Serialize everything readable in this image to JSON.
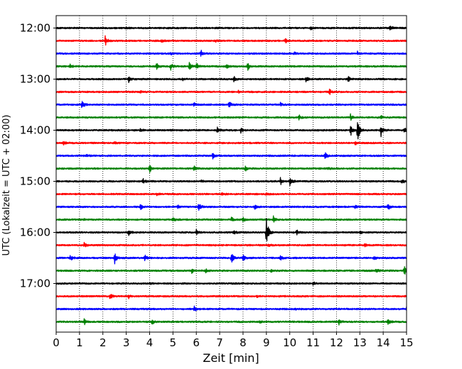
{
  "chart_data": {
    "type": "line",
    "title": "",
    "xlabel": "Zeit  [min]",
    "ylabel": "UTC (Lokalzeit = UTC + 02:00)",
    "xlim": [
      0,
      15
    ],
    "xticks": [
      0,
      1,
      2,
      3,
      4,
      5,
      6,
      7,
      8,
      9,
      10,
      11,
      12,
      13,
      14,
      15
    ],
    "ytick_labels": [
      "12:00",
      "13:00",
      "14:00",
      "15:00",
      "16:00",
      "17:00"
    ],
    "trace_interval_minutes": 15,
    "start_time": "12:00",
    "grid": "vertical dotted",
    "colors": [
      "#000000",
      "#ff0000",
      "#0000ff",
      "#008000"
    ],
    "traces": [
      {
        "start": "12:00",
        "color": "#000000",
        "events": [
          {
            "t": 14.3,
            "amp": 0.55
          },
          {
            "t": 10.9,
            "amp": 0.2
          },
          {
            "t": 3.0,
            "amp": 0.15
          }
        ]
      },
      {
        "start": "12:15",
        "color": "#ff0000",
        "events": [
          {
            "t": 2.1,
            "amp": 0.8
          },
          {
            "t": 4.5,
            "amp": 0.25
          },
          {
            "t": 9.8,
            "amp": 0.4
          },
          {
            "t": 6.8,
            "amp": 0.2
          }
        ]
      },
      {
        "start": "12:30",
        "color": "#0000ff",
        "events": [
          {
            "t": 6.2,
            "amp": 0.5
          },
          {
            "t": 4.9,
            "amp": 0.25
          },
          {
            "t": 12.9,
            "amp": 0.3
          },
          {
            "t": 10.2,
            "amp": 0.25
          }
        ]
      },
      {
        "start": "12:45",
        "color": "#008000",
        "events": [
          {
            "t": 0.6,
            "amp": 0.35
          },
          {
            "t": 4.3,
            "amp": 0.5
          },
          {
            "t": 4.9,
            "amp": 0.55
          },
          {
            "t": 5.7,
            "amp": 0.6
          },
          {
            "t": 6.0,
            "amp": 0.55
          },
          {
            "t": 8.2,
            "amp": 0.65
          },
          {
            "t": 7.3,
            "amp": 0.25
          }
        ]
      },
      {
        "start": "13:00",
        "color": "#000000",
        "events": [
          {
            "t": 3.1,
            "amp": 0.55
          },
          {
            "t": 7.6,
            "amp": 0.5
          },
          {
            "t": 10.7,
            "amp": 0.5
          },
          {
            "t": 12.5,
            "amp": 0.45
          },
          {
            "t": 5.4,
            "amp": 0.2
          }
        ]
      },
      {
        "start": "13:15",
        "color": "#ff0000",
        "events": [
          {
            "t": 11.7,
            "amp": 0.45
          },
          {
            "t": 7.8,
            "amp": 0.2
          },
          {
            "t": 3.6,
            "amp": 0.15
          }
        ]
      },
      {
        "start": "13:30",
        "color": "#0000ff",
        "events": [
          {
            "t": 1.1,
            "amp": 0.9
          },
          {
            "t": 7.4,
            "amp": 0.55
          },
          {
            "t": 5.9,
            "amp": 0.3
          },
          {
            "t": 9.6,
            "amp": 0.25
          }
        ]
      },
      {
        "start": "13:45",
        "color": "#008000",
        "events": [
          {
            "t": 10.4,
            "amp": 0.4
          },
          {
            "t": 12.6,
            "amp": 0.45
          },
          {
            "t": 13.9,
            "amp": 0.35
          }
        ]
      },
      {
        "start": "14:00",
        "color": "#000000",
        "events": [
          {
            "t": 12.9,
            "amp": 1.9
          },
          {
            "t": 12.6,
            "amp": 0.9
          },
          {
            "t": 13.9,
            "amp": 1.0
          },
          {
            "t": 14.9,
            "amp": 0.5
          },
          {
            "t": 6.9,
            "amp": 0.55
          },
          {
            "t": 7.9,
            "amp": 0.4
          },
          {
            "t": 3.6,
            "amp": 0.2
          }
        ]
      },
      {
        "start": "14:15",
        "color": "#ff0000",
        "events": [
          {
            "t": 0.3,
            "amp": 0.3
          },
          {
            "t": 12.8,
            "amp": 0.3
          },
          {
            "t": 2.5,
            "amp": 0.15
          }
        ]
      },
      {
        "start": "14:30",
        "color": "#0000ff",
        "events": [
          {
            "t": 6.7,
            "amp": 0.55
          },
          {
            "t": 11.5,
            "amp": 0.6
          },
          {
            "t": 1.3,
            "amp": 0.15
          }
        ]
      },
      {
        "start": "14:45",
        "color": "#008000",
        "events": [
          {
            "t": 4.0,
            "amp": 0.55
          },
          {
            "t": 5.9,
            "amp": 0.35
          },
          {
            "t": 8.1,
            "amp": 0.45
          },
          {
            "t": 11.6,
            "amp": 0.2
          }
        ]
      },
      {
        "start": "15:00",
        "color": "#000000",
        "events": [
          {
            "t": 3.7,
            "amp": 0.5
          },
          {
            "t": 9.6,
            "amp": 0.55
          },
          {
            "t": 10.0,
            "amp": 0.8
          },
          {
            "t": 14.8,
            "amp": 0.5
          },
          {
            "t": 6.2,
            "amp": 0.2
          }
        ]
      },
      {
        "start": "15:15",
        "color": "#ff0000",
        "events": [
          {
            "t": 7.1,
            "amp": 0.3
          },
          {
            "t": 9.0,
            "amp": 0.2
          },
          {
            "t": 4.3,
            "amp": 0.15
          }
        ]
      },
      {
        "start": "15:30",
        "color": "#0000ff",
        "events": [
          {
            "t": 3.6,
            "amp": 0.55
          },
          {
            "t": 6.1,
            "amp": 0.9
          },
          {
            "t": 8.5,
            "amp": 0.35
          },
          {
            "t": 12.8,
            "amp": 0.45
          },
          {
            "t": 14.2,
            "amp": 0.5
          },
          {
            "t": 5.2,
            "amp": 0.25
          }
        ]
      },
      {
        "start": "15:45",
        "color": "#008000",
        "events": [
          {
            "t": 5.0,
            "amp": 0.45
          },
          {
            "t": 7.5,
            "amp": 0.4
          },
          {
            "t": 8.0,
            "amp": 0.35
          },
          {
            "t": 9.3,
            "amp": 0.5
          },
          {
            "t": 1.2,
            "amp": 0.15
          }
        ]
      },
      {
        "start": "16:00",
        "color": "#000000",
        "events": [
          {
            "t": 3.1,
            "amp": 0.6
          },
          {
            "t": 6.0,
            "amp": 0.45
          },
          {
            "t": 7.6,
            "amp": 0.45
          },
          {
            "t": 9.0,
            "amp": 2.6
          },
          {
            "t": 10.3,
            "amp": 0.5
          },
          {
            "t": 13.0,
            "amp": 0.2
          }
        ]
      },
      {
        "start": "16:15",
        "color": "#ff0000",
        "events": [
          {
            "t": 1.2,
            "amp": 0.35
          },
          {
            "t": 13.2,
            "amp": 0.2
          },
          {
            "t": 9.1,
            "amp": 0.2
          }
        ]
      },
      {
        "start": "16:30",
        "color": "#0000ff",
        "events": [
          {
            "t": 0.6,
            "amp": 0.55
          },
          {
            "t": 2.5,
            "amp": 0.9
          },
          {
            "t": 3.8,
            "amp": 0.5
          },
          {
            "t": 7.5,
            "amp": 0.85
          },
          {
            "t": 8.0,
            "amp": 0.4
          },
          {
            "t": 9.6,
            "amp": 0.35
          },
          {
            "t": 13.6,
            "amp": 0.45
          }
        ]
      },
      {
        "start": "16:45",
        "color": "#008000",
        "events": [
          {
            "t": 5.8,
            "amp": 0.35
          },
          {
            "t": 6.4,
            "amp": 0.3
          },
          {
            "t": 13.7,
            "amp": 0.4
          },
          {
            "t": 14.9,
            "amp": 0.75
          },
          {
            "t": 9.2,
            "amp": 0.2
          }
        ]
      },
      {
        "start": "17:00",
        "color": "#000000",
        "events": [
          {
            "t": 11.0,
            "amp": 0.25
          },
          {
            "t": 4.0,
            "amp": 0.1
          }
        ]
      },
      {
        "start": "17:15",
        "color": "#ff0000",
        "events": [
          {
            "t": 2.3,
            "amp": 0.45
          },
          {
            "t": 3.1,
            "amp": 0.3
          },
          {
            "t": 8.6,
            "amp": 0.15
          }
        ]
      },
      {
        "start": "17:30",
        "color": "#0000ff",
        "events": [
          {
            "t": 5.9,
            "amp": 0.45
          },
          {
            "t": 15.0,
            "amp": 0.45
          },
          {
            "t": 10.2,
            "amp": 0.15
          }
        ]
      },
      {
        "start": "17:45",
        "color": "#008000",
        "events": [
          {
            "t": 1.2,
            "amp": 0.55
          },
          {
            "t": 4.1,
            "amp": 0.4
          },
          {
            "t": 12.1,
            "amp": 0.45
          },
          {
            "t": 14.2,
            "amp": 0.5
          },
          {
            "t": 8.7,
            "amp": 0.2
          }
        ]
      }
    ]
  }
}
